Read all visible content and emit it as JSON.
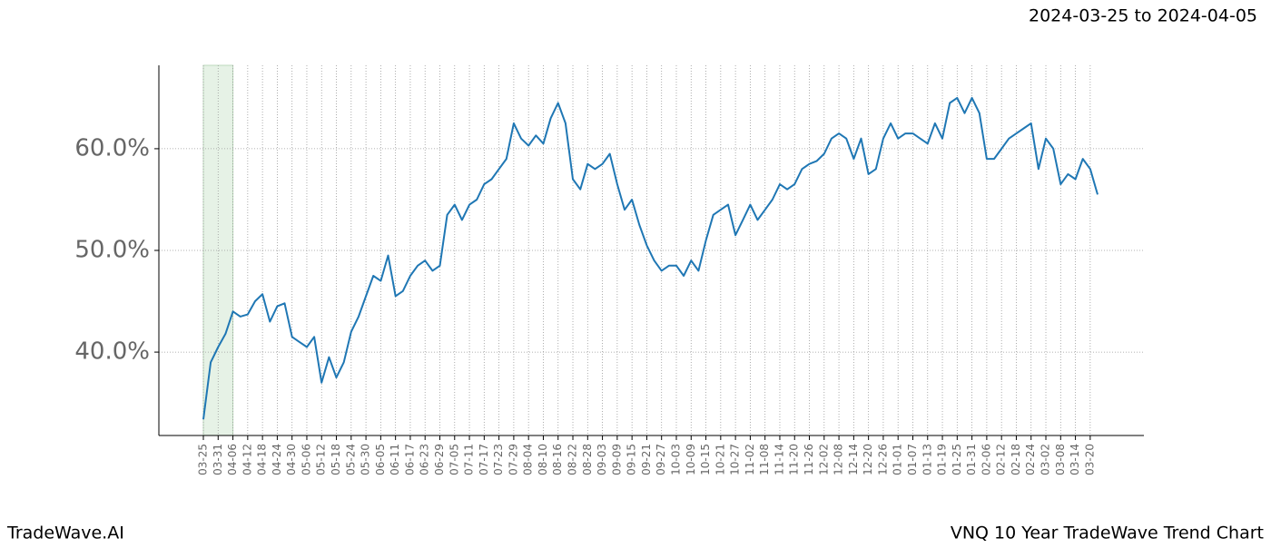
{
  "chart_data": {
    "type": "line",
    "date_range": "2024-03-25 to 2024-04-05",
    "brand": "TradeWave.AI",
    "title": "VNQ 10 Year TradeWave Trend Chart",
    "categories": [
      "03-25",
      null,
      "03-31",
      null,
      "04-06",
      null,
      "04-12",
      null,
      "04-18",
      null,
      "04-24",
      null,
      "04-30",
      null,
      "05-06",
      null,
      "05-12",
      null,
      "05-18",
      null,
      "05-24",
      null,
      "05-30",
      null,
      "06-05",
      null,
      "06-11",
      null,
      "06-17",
      null,
      "06-23",
      null,
      "06-29",
      null,
      "07-05",
      null,
      "07-11",
      null,
      "07-17",
      null,
      "07-23",
      null,
      "07-29",
      null,
      "08-04",
      null,
      "08-10",
      null,
      "08-16",
      null,
      "08-22",
      null,
      "08-28",
      null,
      "09-03",
      null,
      "09-09",
      null,
      "09-15",
      null,
      "09-21",
      null,
      "09-27",
      null,
      "10-03",
      null,
      "10-09",
      null,
      "10-15",
      null,
      "10-21",
      null,
      "10-27",
      null,
      "11-02",
      null,
      "11-08",
      null,
      "11-14",
      null,
      "11-20",
      null,
      "11-26",
      null,
      "12-02",
      null,
      "12-08",
      null,
      "12-14",
      null,
      "12-20",
      null,
      "12-26",
      null,
      "01-01",
      null,
      "01-07",
      null,
      "01-13",
      null,
      "01-19",
      null,
      "01-25",
      null,
      "01-31",
      null,
      "02-06",
      null,
      "02-12",
      null,
      "02-18",
      null,
      "02-24",
      null,
      "03-02",
      null,
      "03-08",
      null,
      "03-14",
      null,
      "03-20",
      null
    ],
    "values": [
      33.4,
      39.0,
      40.5,
      41.8,
      44.0,
      43.5,
      43.7,
      45.0,
      45.7,
      43.0,
      44.5,
      44.8,
      41.5,
      41.0,
      40.5,
      41.5,
      37.0,
      39.5,
      37.5,
      39.0,
      42.0,
      43.5,
      45.5,
      47.5,
      47.0,
      49.5,
      45.5,
      46.0,
      47.5,
      48.5,
      49.0,
      48.0,
      48.5,
      53.5,
      54.5,
      53.0,
      54.5,
      55.0,
      56.5,
      57.0,
      58.0,
      59.0,
      62.5,
      61.0,
      60.3,
      61.3,
      60.5,
      63.0,
      64.5,
      62.5,
      57.0,
      56.0,
      58.5,
      58.0,
      58.5,
      59.5,
      56.5,
      54.0,
      55.0,
      52.5,
      50.5,
      49.0,
      48.0,
      48.5,
      48.5,
      47.5,
      49.0,
      48.0,
      51.0,
      53.5,
      54.0,
      54.5,
      51.5,
      53.0,
      54.5,
      53.0,
      54.0,
      55.0,
      56.5,
      56.0,
      56.5,
      58.0,
      58.5,
      58.8,
      59.5,
      61.0,
      61.5,
      61.0,
      59.0,
      61.0,
      57.5,
      58.0,
      61.0,
      62.5,
      61.0,
      61.5,
      61.5,
      61.0,
      60.5,
      62.5,
      61.0,
      64.5,
      65.0,
      63.5,
      65.0,
      63.5,
      59.0,
      59.0,
      60.0,
      61.0,
      61.5,
      62.0,
      62.5,
      58.0,
      61.0,
      60.0,
      56.5,
      57.5,
      57.0,
      59.0,
      58.0,
      55.5
    ],
    "color": "#1f77b4",
    "highlight": [
      "03-25",
      "04-06"
    ],
    "highlight_color": "#e6f2e6",
    "ylim": [
      31.8,
      68.2
    ],
    "yticks": [
      {
        "value": 40,
        "label": "40.0%"
      },
      {
        "value": 50,
        "label": "50.0%"
      },
      {
        "value": 60,
        "label": "60.0%"
      }
    ],
    "grid": true
  }
}
